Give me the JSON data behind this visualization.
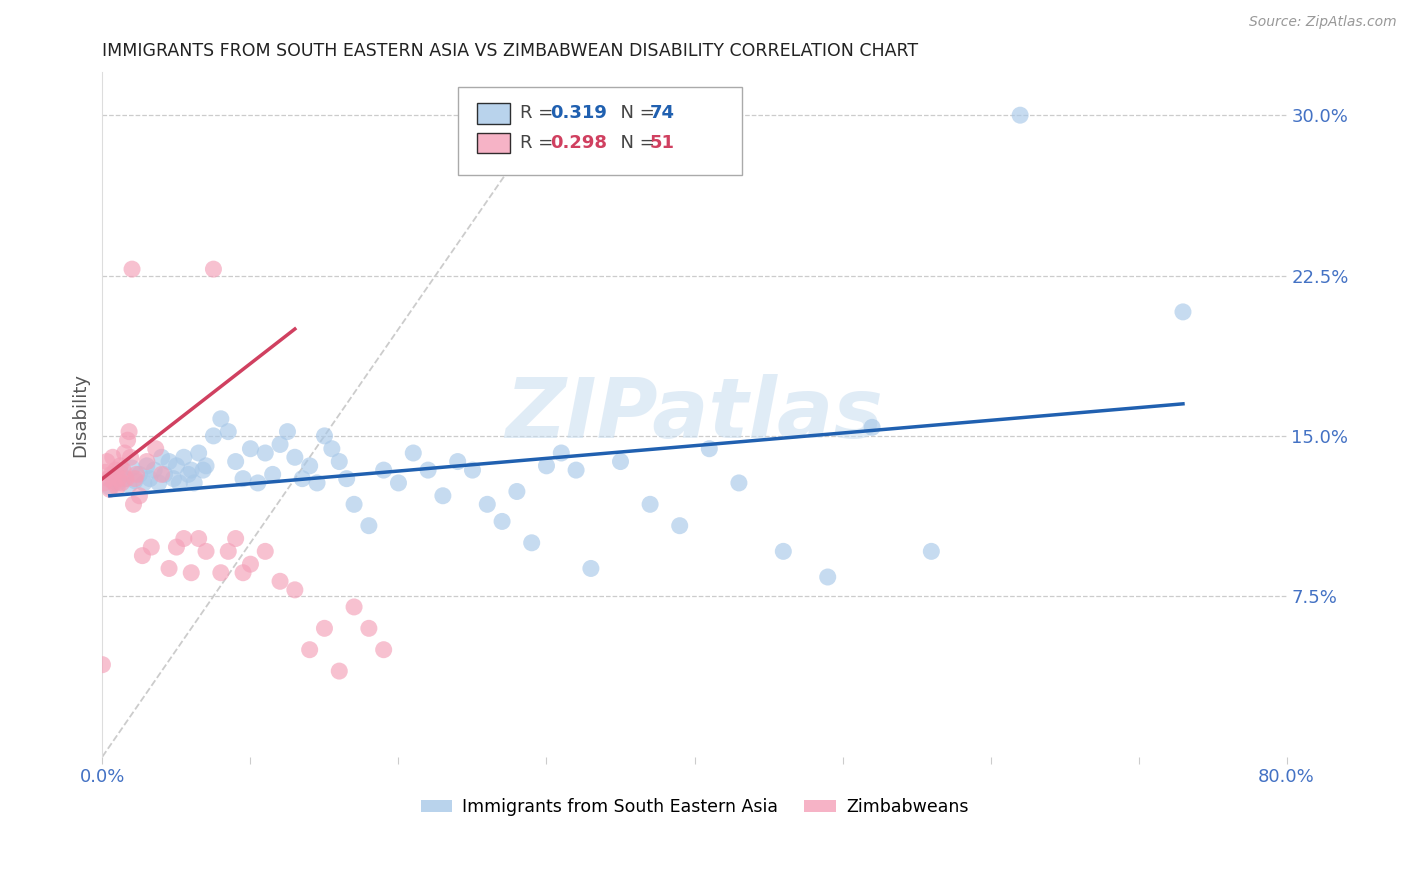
{
  "title": "IMMIGRANTS FROM SOUTH EASTERN ASIA VS ZIMBABWEAN DISABILITY CORRELATION CHART",
  "source": "Source: ZipAtlas.com",
  "ylabel": "Disability",
  "xlim": [
    0.0,
    0.8
  ],
  "ylim": [
    0.0,
    0.32
  ],
  "watermark": "ZIPatlas",
  "blue_color": "#a8c8e8",
  "pink_color": "#f4a0b8",
  "blue_line_color": "#2060b0",
  "pink_line_color": "#d04060",
  "grid_color": "#cccccc",
  "title_color": "#222222",
  "ylabel_color": "#555555",
  "ytick_color": "#4472c4",
  "xtick_color": "#4472c4",
  "blue_scatter_x": [
    0.005,
    0.008,
    0.01,
    0.012,
    0.015,
    0.018,
    0.02,
    0.022,
    0.025,
    0.028,
    0.03,
    0.032,
    0.035,
    0.038,
    0.04,
    0.042,
    0.045,
    0.048,
    0.05,
    0.052,
    0.055,
    0.058,
    0.06,
    0.062,
    0.065,
    0.068,
    0.07,
    0.075,
    0.08,
    0.085,
    0.09,
    0.095,
    0.1,
    0.105,
    0.11,
    0.115,
    0.12,
    0.125,
    0.13,
    0.135,
    0.14,
    0.145,
    0.15,
    0.155,
    0.16,
    0.165,
    0.17,
    0.18,
    0.19,
    0.2,
    0.21,
    0.22,
    0.23,
    0.24,
    0.25,
    0.26,
    0.27,
    0.28,
    0.29,
    0.3,
    0.31,
    0.32,
    0.33,
    0.35,
    0.37,
    0.39,
    0.41,
    0.43,
    0.46,
    0.49,
    0.52,
    0.56,
    0.62,
    0.73
  ],
  "blue_scatter_y": [
    0.126,
    0.131,
    0.128,
    0.133,
    0.13,
    0.127,
    0.135,
    0.129,
    0.132,
    0.128,
    0.136,
    0.13,
    0.134,
    0.128,
    0.14,
    0.132,
    0.138,
    0.13,
    0.136,
    0.128,
    0.14,
    0.132,
    0.134,
    0.128,
    0.142,
    0.134,
    0.136,
    0.15,
    0.158,
    0.152,
    0.138,
    0.13,
    0.144,
    0.128,
    0.142,
    0.132,
    0.146,
    0.152,
    0.14,
    0.13,
    0.136,
    0.128,
    0.15,
    0.144,
    0.138,
    0.13,
    0.118,
    0.108,
    0.134,
    0.128,
    0.142,
    0.134,
    0.122,
    0.138,
    0.134,
    0.118,
    0.11,
    0.124,
    0.1,
    0.136,
    0.142,
    0.134,
    0.088,
    0.138,
    0.118,
    0.108,
    0.144,
    0.128,
    0.096,
    0.084,
    0.154,
    0.096,
    0.3,
    0.208
  ],
  "pink_scatter_x": [
    0.0,
    0.001,
    0.002,
    0.003,
    0.004,
    0.005,
    0.006,
    0.007,
    0.008,
    0.009,
    0.01,
    0.011,
    0.012,
    0.013,
    0.014,
    0.015,
    0.016,
    0.017,
    0.018,
    0.019,
    0.02,
    0.021,
    0.022,
    0.023,
    0.025,
    0.027,
    0.03,
    0.033,
    0.036,
    0.04,
    0.045,
    0.05,
    0.055,
    0.06,
    0.065,
    0.07,
    0.075,
    0.08,
    0.085,
    0.09,
    0.095,
    0.1,
    0.11,
    0.12,
    0.13,
    0.14,
    0.15,
    0.16,
    0.17,
    0.18,
    0.19
  ],
  "pink_scatter_y": [
    0.043,
    0.128,
    0.133,
    0.138,
    0.13,
    0.125,
    0.132,
    0.14,
    0.128,
    0.134,
    0.126,
    0.13,
    0.136,
    0.128,
    0.134,
    0.142,
    0.13,
    0.148,
    0.152,
    0.14,
    0.228,
    0.118,
    0.13,
    0.132,
    0.122,
    0.094,
    0.138,
    0.098,
    0.144,
    0.132,
    0.088,
    0.098,
    0.102,
    0.086,
    0.102,
    0.096,
    0.228,
    0.086,
    0.096,
    0.102,
    0.086,
    0.09,
    0.096,
    0.082,
    0.078,
    0.05,
    0.06,
    0.04,
    0.07,
    0.06,
    0.05
  ],
  "blue_trend_x": [
    0.005,
    0.73
  ],
  "blue_trend_y": [
    0.122,
    0.165
  ],
  "pink_trend_x": [
    0.0,
    0.13
  ],
  "pink_trend_y": [
    0.13,
    0.2
  ],
  "diag_line_x": [
    0.0,
    0.3
  ],
  "diag_line_y": [
    0.0,
    0.3
  ]
}
